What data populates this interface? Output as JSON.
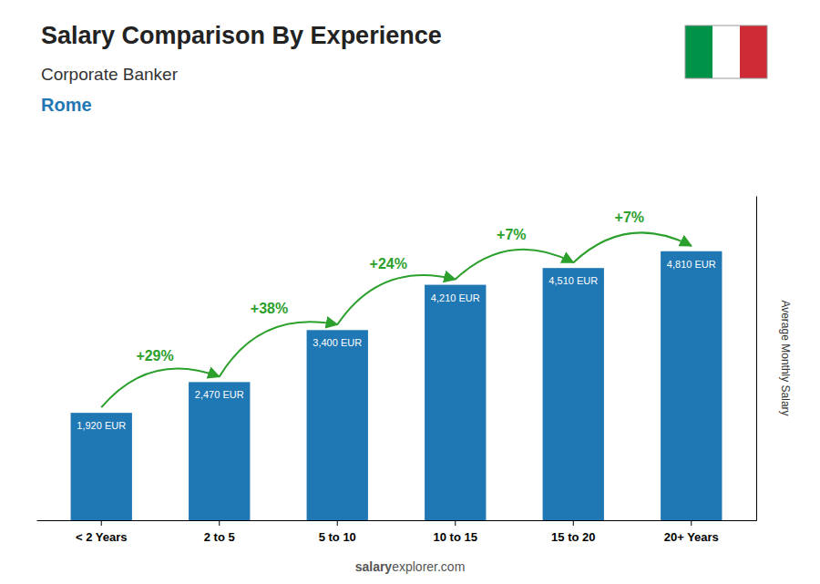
{
  "chart_data": {
    "type": "bar",
    "title": "Salary Comparison By Experience",
    "subtitle": "Corporate Banker",
    "annotations": [
      "Rome",
      "salary",
      "explorer.com"
    ],
    "y_label": "Average Monthly Salary",
    "categories": [
      "< 2 Years",
      "2 to 5",
      "5 to 10",
      "10 to 15",
      "15 to 20",
      "20+ Years"
    ],
    "values": [
      1920,
      2470,
      3400,
      4210,
      4510,
      4810
    ],
    "value_labels": [
      "1,920 EUR",
      "2,470 EUR",
      "3,400 EUR",
      "4,210 EUR",
      "4,510 EUR",
      "4,810 EUR"
    ],
    "data_labels": true,
    "change_labels": [
      "+29%",
      "+38%",
      "+24%",
      "+7%",
      "+7%"
    ],
    "ylim": [
      0,
      5800
    ],
    "grid": false,
    "tick_labels": "x"
  }
}
